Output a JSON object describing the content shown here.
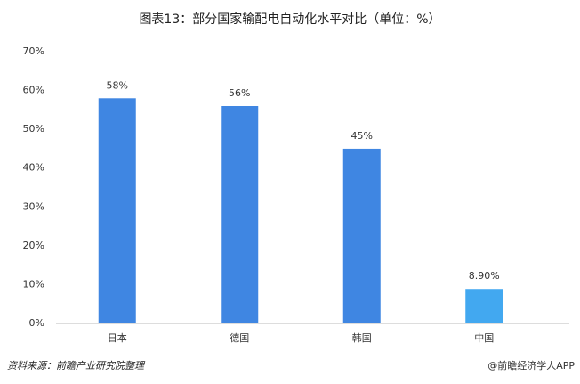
{
  "chart_data": {
    "type": "bar",
    "title": "图表13：部分国家输配电自动化水平对比（单位：%）",
    "categories": [
      "日本",
      "德国",
      "韩国",
      "中国"
    ],
    "values": [
      58,
      56,
      45,
      8.9
    ],
    "value_labels": [
      "58%",
      "56%",
      "45%",
      "8.90%"
    ],
    "colors": [
      "#3f86e2",
      "#3f86e2",
      "#3f86e2",
      "#42a8f0"
    ],
    "ylim": [
      0,
      70
    ],
    "yticks": [
      {
        "value": 0,
        "label": "0%"
      },
      {
        "value": 10,
        "label": "10%"
      },
      {
        "value": 20,
        "label": "20%"
      },
      {
        "value": 30,
        "label": "30%"
      },
      {
        "value": 40,
        "label": "40%"
      },
      {
        "value": 50,
        "label": "50%"
      },
      {
        "value": 60,
        "label": "60%"
      },
      {
        "value": 70,
        "label": "70%"
      }
    ],
    "source": "资料来源：前瞻产业研究院整理",
    "footer": "@前瞻经济学人APP"
  }
}
